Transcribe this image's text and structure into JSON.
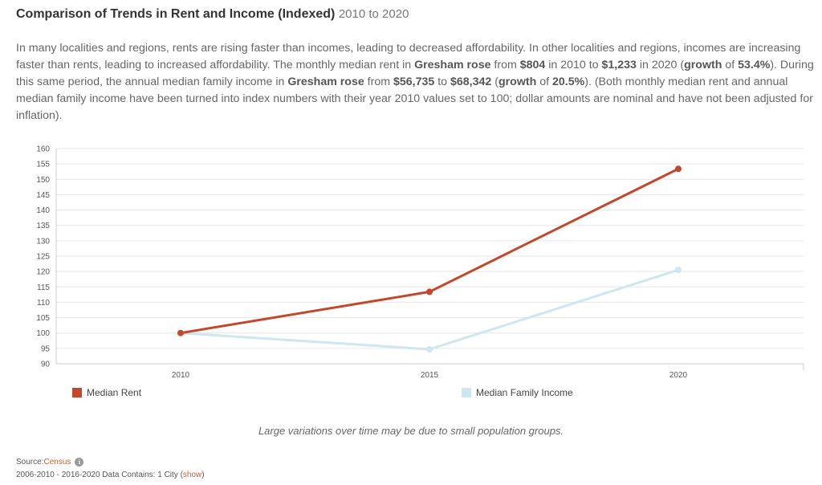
{
  "header": {
    "title": "Comparison of Trends in Rent and Income (Indexed)",
    "years": "2010 to 2020"
  },
  "description": {
    "p1": "In many localities and regions, rents are rising faster than incomes, leading to decreased affordability. In other localities and regions, incomes are increasing faster than rents, leading to increased affordability. The monthly median rent in ",
    "place1": "Gresham rose",
    "p2": " from ",
    "rent_2010": "$804",
    "p3": " in 2010 to ",
    "rent_2020": "$1,233",
    "p4": " in 2020 (",
    "growth_label1": "growth",
    "p5": " of ",
    "rent_growth": "53.4%",
    "p6": "). During this same period, the annual median family income in ",
    "place2": "Gresham rose",
    "p7": " from ",
    "income_2010": "$56,735",
    "p8": " to ",
    "income_2020": "$68,342",
    "p9": " (",
    "growth_label2": "growth",
    "p10": " of ",
    "income_growth": "20.5%",
    "p11": "). (Both monthly median rent and annual median family income have been turned into index numbers with their year 2010 values set to 100; dollar amounts are nominal and have not been adjusted for inflation)."
  },
  "chart_data": {
    "type": "line",
    "x": [
      "2010",
      "2015",
      "2020"
    ],
    "ylim": [
      90,
      160
    ],
    "yticks": [
      90,
      95,
      100,
      105,
      110,
      115,
      120,
      125,
      130,
      135,
      140,
      145,
      150,
      155,
      160
    ],
    "grid": true,
    "legend_position": "bottom",
    "series": [
      {
        "name": "Median Rent",
        "color": "#c4462c",
        "values": [
          100,
          113.4,
          153.4
        ]
      },
      {
        "name": "Median Family Income",
        "color": "#cde6ef",
        "values": [
          100,
          94.7,
          120.5
        ]
      }
    ]
  },
  "legend": {
    "rent": "Median Rent",
    "income": "Median Family Income"
  },
  "note": "Large variations over time may be due to small population groups.",
  "source": {
    "label": "Source: ",
    "link": "Census",
    "icon": "info-icon",
    "meta_prefix": "2006-2010 - 2016-2020 Data Contains: 1 City (",
    "show_link": "show",
    "meta_suffix": ")"
  }
}
